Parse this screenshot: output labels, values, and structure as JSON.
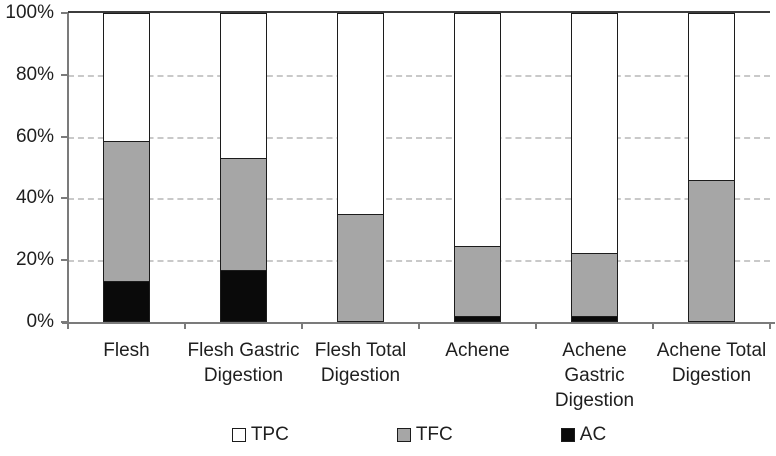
{
  "chart_data": {
    "type": "bar",
    "subtype": "100-percent-stacked-column",
    "title": "",
    "xlabel": "",
    "ylabel": "",
    "categories": [
      "Flesh",
      "Flesh Gastric Digestion",
      "Flesh Total Digestion",
      "Achene",
      "Achene Gastric Digestion",
      "Achene Total Digestion"
    ],
    "category_label_lines": [
      [
        "Flesh"
      ],
      [
        "Flesh Gastric",
        "Digestion"
      ],
      [
        "Flesh Total",
        "Digestion"
      ],
      [
        "Achene"
      ],
      [
        "Achene",
        "Gastric",
        "Digestion"
      ],
      [
        "Achene Total",
        "Digestion"
      ]
    ],
    "series": [
      {
        "name": "TPC",
        "color": "#ffffff",
        "values": [
          41.5,
          47,
          65,
          75.5,
          78,
          54
        ]
      },
      {
        "name": "TFC",
        "color": "#a6a6a6",
        "values": [
          45.5,
          36.5,
          35,
          23,
          20.5,
          46
        ]
      },
      {
        "name": "AC",
        "color": "#0a0a0a",
        "values": [
          13,
          16.5,
          0,
          1.5,
          1.5,
          0
        ]
      }
    ],
    "stack_order_top_to_bottom": [
      "TPC",
      "TFC",
      "AC"
    ],
    "ylim": [
      0,
      100
    ],
    "ytick_labels": [
      "0%",
      "20%",
      "40%",
      "60%",
      "80%",
      "100%"
    ],
    "ytick_values": [
      0,
      20,
      40,
      60,
      80,
      100
    ],
    "grid": "horizontal dashed at 20% intervals",
    "legend_position": "bottom",
    "legend_entries": [
      "TPC",
      "TFC",
      "AC"
    ]
  },
  "colors": {
    "background": "#ffffff",
    "bar_border": "#1c1c1c",
    "axis_line": "#7b7b7b",
    "gridline": "#c9c9c9",
    "text": "#1f1f1f"
  }
}
